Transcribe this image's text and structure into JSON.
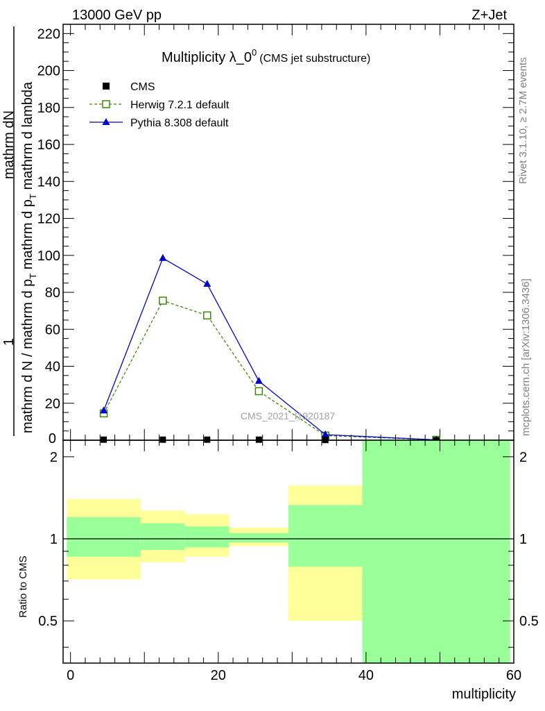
{
  "header": {
    "left": "13000 GeV pp",
    "right": "Z+Jet"
  },
  "title": {
    "main": "Multiplicity λ_0",
    "sup": "0",
    "sub": "(CMS jet substructure)"
  },
  "side_text": {
    "top": "Rivet 3.1.10, ≥ 2.7M events",
    "bottom": "mcplots.cern.ch [arXiv:1306.3436]"
  },
  "watermark": "CMS_2021_I1920187",
  "colors": {
    "cms": "#000000",
    "herwig": "#3a8a00",
    "pythia": "#0000cc",
    "band_yellow": "#ffff99",
    "band_green": "#99ff99"
  },
  "chart_data": [
    {
      "type": "line",
      "ylabel": {
        "numerator_parts": [
          "1",
          "mathrm d",
          "N"
        ],
        "denominator": "mathrm d N / mathrm d p",
        "denominator_sub": "T",
        "denominator_tail": " mathrm d lambda",
        "left_of_fraction": "1",
        "dN_label": "mathrm dN",
        "dpT_label": "mathrm d p",
        "full_lines": [
          "mathrm d N / mathrm d p",
          "T",
          " mathrm d lambda",
          "mathrm dN",
          "1",
          "mathrm d p",
          "T",
          " mathrm d p",
          "T",
          " mathrm d lambda"
        ]
      },
      "ylim": [
        0,
        225
      ],
      "xlim": [
        -1,
        60
      ],
      "yticks": [
        20,
        40,
        60,
        80,
        100,
        120,
        140,
        160,
        180,
        200,
        220
      ],
      "ytick_labels": [
        "20",
        "40",
        "60",
        "80",
        "100",
        "120",
        "140",
        "160",
        "180",
        "200",
        "220"
      ],
      "ytick_label_zero": "0",
      "legend_placement": "top-left",
      "series": [
        {
          "name": "CMS",
          "marker": "square",
          "x": [
            4.5,
            12.5,
            18.5,
            25.5,
            34.5,
            49.5
          ],
          "y": [
            0.3,
            0.3,
            0.3,
            0.3,
            0.1,
            0.0
          ]
        },
        {
          "name": "Herwig 7.2.1 default",
          "marker": "open-square",
          "x": [
            4.5,
            12.5,
            18.5,
            25.5,
            34.5,
            49.5
          ],
          "y": [
            14.5,
            75.5,
            67.5,
            26.5,
            2.5,
            0.2
          ]
        },
        {
          "name": "Pythia 8.308 default",
          "marker": "triangle",
          "x": [
            4.5,
            12.5,
            18.5,
            25.5,
            34.5,
            49.5
          ],
          "y": [
            16,
            98.5,
            84.5,
            32,
            3,
            0.2
          ]
        }
      ]
    },
    {
      "type": "area",
      "ylabel": "Ratio to CMS",
      "xlabel": "multiplicity",
      "xlim": [
        -1,
        60
      ],
      "ylim": [
        0.35,
        2.3
      ],
      "xticks": [
        0,
        20,
        40,
        60
      ],
      "xtick_labels": [
        "0",
        "20",
        "40",
        "60"
      ],
      "yticks": [
        0.5,
        1,
        2
      ],
      "ytick_labels": [
        "0.5",
        "1",
        "2"
      ],
      "reference_line": 1,
      "bins": [
        {
          "x0": -0.5,
          "x1": 9.5,
          "yellow": [
            0.71,
            1.4
          ],
          "green": [
            0.86,
            1.2
          ]
        },
        {
          "x0": 9.5,
          "x1": 15.5,
          "yellow": [
            0.82,
            1.27
          ],
          "green": [
            0.91,
            1.14
          ]
        },
        {
          "x0": 15.5,
          "x1": 21.5,
          "yellow": [
            0.86,
            1.23
          ],
          "green": [
            0.93,
            1.11
          ]
        },
        {
          "x0": 21.5,
          "x1": 29.5,
          "yellow": [
            0.94,
            1.1
          ],
          "green": [
            0.97,
            1.05
          ]
        },
        {
          "x0": 29.5,
          "x1": 39.5,
          "yellow": [
            0.5,
            1.57
          ],
          "green": [
            0.79,
            1.33
          ]
        },
        {
          "x0": 39.5,
          "x1": 59.5,
          "yellow": [
            0.35,
            2.3
          ],
          "green": [
            0.35,
            2.3
          ]
        }
      ]
    }
  ]
}
